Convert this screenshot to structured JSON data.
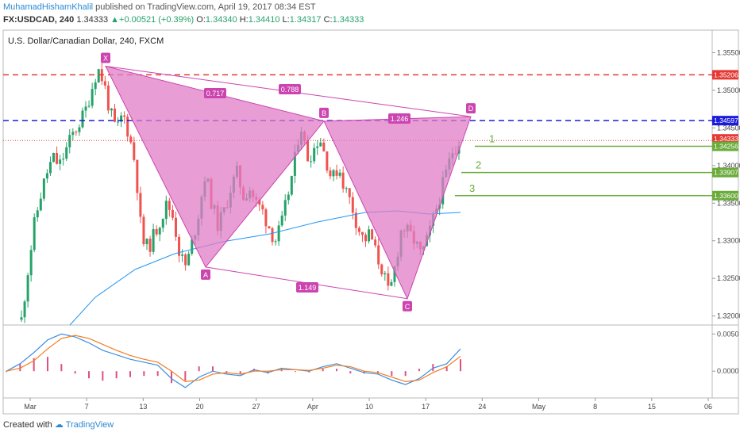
{
  "header": {
    "author": "MuhamadHishamKhalil",
    "published": "published on TradingView.com, April 19, 2017 08:34 EST",
    "symbol": "FX:USDCAD, 240",
    "last": "1.34333",
    "change": "+0.00521 (+0.39%)",
    "o_label": "O:",
    "open": "1.34340",
    "h_label": "H:",
    "high": "1.34410",
    "l_label": "L:",
    "low": "1.34317",
    "c_label": "C:",
    "close": "1.34333",
    "up_arrow": "▲"
  },
  "footer": {
    "created_with": "Created with",
    "brand": "TradingView"
  },
  "colors": {
    "pattern_fill": "#e07cc5",
    "pattern_line": "#cc44b0",
    "red_line": "#e53935",
    "blue_line": "#1a1adc",
    "green": "#6aab3a",
    "up_candle": "#26a269",
    "down_candle": "#ef5350",
    "ma": "#2196f3",
    "macd": "#3d8fe0",
    "signal": "#f57c1f",
    "hist": "#e04f7d"
  },
  "chart_data": {
    "type": "candlestick",
    "title": "U.S. Dollar/Canadian Dollar, 240, FXCM",
    "ylim": [
      1.3188,
      1.358
    ],
    "y_ticks": [
      "1.32000",
      "1.32500",
      "1.33000",
      "1.33500",
      "1.34000",
      "1.34500",
      "1.35000",
      "1.35500"
    ],
    "price_labels": [
      {
        "value": "1.35206",
        "color": "#e53935"
      },
      {
        "value": "1.34597",
        "color": "#1a1adc"
      },
      {
        "value": "1.34333",
        "color": "#e53935"
      },
      {
        "value": "1.34256",
        "color": "#6aab3a"
      },
      {
        "value": "1.33907",
        "color": "#6aab3a"
      },
      {
        "value": "1.33600",
        "color": "#6aab3a"
      }
    ],
    "x_ticks": [
      "Mar",
      "7",
      "13",
      "20",
      "27",
      "Apr",
      "10",
      "17",
      "24",
      "May",
      "8",
      "15",
      "06"
    ],
    "harmonic_pattern": {
      "points": [
        {
          "label": "X",
          "price": 1.3532
        },
        {
          "label": "A",
          "price": 1.3265
        },
        {
          "label": "B",
          "price": 1.3459
        },
        {
          "label": "C",
          "price": 1.3223
        },
        {
          "label": "D",
          "price": 1.3465
        }
      ],
      "ratios": [
        {
          "label": "0.717",
          "from": "XA",
          "to": "B"
        },
        {
          "label": "0.788",
          "from": "XD",
          "to": "AD"
        },
        {
          "label": "1.246",
          "from": "BC",
          "to": "D"
        },
        {
          "label": "1.149",
          "from": "AC",
          "to": "AC"
        }
      ]
    },
    "horizontal_levels": [
      {
        "price": 1.35206,
        "style": "dashed",
        "color": "#e53935"
      },
      {
        "price": 1.34597,
        "style": "dashed",
        "color": "#1a1adc"
      },
      {
        "price": 1.34333,
        "style": "dotted",
        "color": "#e53935"
      }
    ],
    "targets": [
      {
        "label": "1",
        "price": 1.34256
      },
      {
        "label": "2",
        "price": 1.33907
      },
      {
        "label": "3",
        "price": 1.336
      }
    ],
    "price_path": [
      1.3195,
      1.326,
      1.332,
      1.336,
      1.339,
      1.341,
      1.34,
      1.342,
      1.344,
      1.3455,
      1.347,
      1.35,
      1.353,
      1.351,
      1.347,
      1.3445,
      1.347,
      1.344,
      1.34,
      1.33,
      1.329,
      1.331,
      1.333,
      1.335,
      1.333,
      1.328,
      1.3265,
      1.33,
      1.334,
      1.339,
      1.335,
      1.332,
      1.334,
      1.337,
      1.339,
      1.336,
      1.337,
      1.335,
      1.334,
      1.332,
      1.33,
      1.332,
      1.336,
      1.34,
      1.3459,
      1.341,
      1.342,
      1.344,
      1.341,
      1.338,
      1.34,
      1.337,
      1.335,
      1.332,
      1.33,
      1.331,
      1.328,
      1.326,
      1.3225,
      1.327,
      1.332,
      1.331,
      1.33,
      1.328,
      1.33,
      1.333,
      1.336,
      1.339,
      1.342,
      1.3433
    ],
    "macd": {
      "ylim": [
        -0.0036,
        0.0062
      ],
      "y_ticks": [
        "0.0050",
        "0.0000"
      ],
      "macd": [
        0.0,
        0.001,
        0.0025,
        0.0042,
        0.005,
        0.0046,
        0.0038,
        0.0028,
        0.0022,
        0.0016,
        0.0012,
        0.0008,
        -0.001,
        -0.0022,
        -0.0008,
        0.0,
        -0.0004,
        -0.0006,
        0.0002,
        -0.0002,
        0.0004,
        0.0002,
        0.0,
        0.0006,
        0.001,
        0.0004,
        -0.0002,
        -0.0004,
        -0.0012,
        -0.0018,
        -0.001,
        0.0004,
        0.001,
        0.003
      ],
      "signal": [
        0.0,
        0.0004,
        0.0014,
        0.003,
        0.0044,
        0.0048,
        0.0044,
        0.0036,
        0.0028,
        0.0021,
        0.0016,
        0.0012,
        0.0,
        -0.0014,
        -0.0012,
        -0.0004,
        -0.0002,
        -0.0004,
        0.0,
        0.0,
        0.0002,
        0.0002,
        0.0001,
        0.0004,
        0.0008,
        0.0006,
        0.0,
        -0.0002,
        -0.0008,
        -0.0014,
        -0.0012,
        -0.0002,
        0.0006,
        0.002
      ]
    }
  }
}
